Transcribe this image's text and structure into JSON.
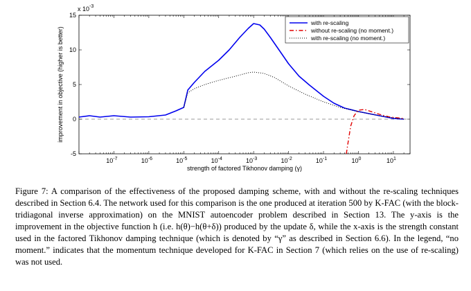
{
  "chart_data": {
    "type": "line",
    "xscale": "log",
    "xlim": [
      1e-08,
      30
    ],
    "ylim": [
      -5,
      15
    ],
    "ylim_note": "",
    "y_multiplier_label": "x 10",
    "y_multiplier_exp": "-3",
    "xlabel": "strength of factored Tikhonov damping (γ)",
    "ylabel": "improvement in objective (higher is better)",
    "x_ticks": [
      {
        "value": 1e-07,
        "base": "10",
        "exp": "-7"
      },
      {
        "value": 1e-06,
        "base": "10",
        "exp": "-6"
      },
      {
        "value": 1e-05,
        "base": "10",
        "exp": "-5"
      },
      {
        "value": 0.0001,
        "base": "10",
        "exp": "-4"
      },
      {
        "value": 0.001,
        "base": "10",
        "exp": "-3"
      },
      {
        "value": 0.01,
        "base": "10",
        "exp": "-2"
      },
      {
        "value": 0.1,
        "base": "10",
        "exp": "-1"
      },
      {
        "value": 1,
        "base": "10",
        "exp": "0"
      },
      {
        "value": 10,
        "base": "10",
        "exp": "1"
      }
    ],
    "y_ticks": [
      {
        "value": -5,
        "label": "-5"
      },
      {
        "value": 0,
        "label": "0"
      },
      {
        "value": 5,
        "label": "5"
      },
      {
        "value": 10,
        "label": "10"
      },
      {
        "value": 15,
        "label": "15"
      }
    ],
    "legend_position": "top-right",
    "series": [
      {
        "name": "with re-scaling",
        "color": "#0000ee",
        "style": "solid",
        "points": [
          [
            1e-08,
            0.3
          ],
          [
            2e-08,
            0.5
          ],
          [
            4e-08,
            0.3
          ],
          [
            1e-07,
            0.5
          ],
          [
            3e-07,
            0.3
          ],
          [
            1e-06,
            0.35
          ],
          [
            3e-06,
            0.6
          ],
          [
            6e-06,
            1.2
          ],
          [
            1e-05,
            1.7
          ],
          [
            1.3e-05,
            4.2
          ],
          [
            2e-05,
            5.3
          ],
          [
            4e-05,
            6.9
          ],
          [
            0.0001,
            8.5
          ],
          [
            0.0002,
            10.0
          ],
          [
            0.0004,
            11.8
          ],
          [
            0.0007,
            13.1
          ],
          [
            0.001,
            13.8
          ],
          [
            0.0015,
            13.6
          ],
          [
            0.002,
            13.0
          ],
          [
            0.003,
            11.8
          ],
          [
            0.005,
            10.2
          ],
          [
            0.01,
            8.0
          ],
          [
            0.02,
            6.2
          ],
          [
            0.04,
            4.9
          ],
          [
            0.1,
            3.3
          ],
          [
            0.2,
            2.3
          ],
          [
            0.4,
            1.6
          ],
          [
            1,
            1.1
          ],
          [
            2,
            0.8
          ],
          [
            5,
            0.4
          ],
          [
            10,
            0.1
          ],
          [
            20,
            0.0
          ]
        ]
      },
      {
        "name": "without re-scaling (no moment.)",
        "color": "#e00000",
        "style": "dashdot",
        "points": [
          [
            0.45,
            -5
          ],
          [
            0.5,
            -3.5
          ],
          [
            0.6,
            -1.0
          ],
          [
            0.75,
            0.5
          ],
          [
            1,
            1.3
          ],
          [
            1.5,
            1.4
          ],
          [
            2,
            1.2
          ],
          [
            4,
            0.7
          ],
          [
            8,
            0.3
          ],
          [
            20,
            0.1
          ]
        ]
      },
      {
        "name": "with re-scaling (no moment.)",
        "color": "#000000",
        "style": "dotted",
        "points": [
          [
            1e-05,
            1.7
          ],
          [
            1.3e-05,
            3.8
          ],
          [
            2e-05,
            4.4
          ],
          [
            4e-05,
            5.0
          ],
          [
            0.0001,
            5.6
          ],
          [
            0.0003,
            6.2
          ],
          [
            0.0007,
            6.7
          ],
          [
            0.001,
            6.8
          ],
          [
            0.002,
            6.6
          ],
          [
            0.004,
            6.0
          ],
          [
            0.01,
            4.8
          ],
          [
            0.03,
            3.6
          ],
          [
            0.1,
            2.5
          ],
          [
            0.3,
            1.7
          ],
          [
            1,
            1.1
          ],
          [
            3,
            0.6
          ],
          [
            10,
            0.2
          ],
          [
            20,
            0.0
          ]
        ]
      }
    ]
  },
  "caption": {
    "text": "Figure 7: A comparison of the effectiveness of the proposed damping scheme, with and without the re-scaling techniques described in Section 6.4. The network used for this comparison is the one produced at iteration 500 by K-FAC (with the block-tridiagonal inverse approximation) on the MNIST autoencoder problem described in Section 13. The y-axis is the improvement in the objective function h (i.e. h(θ)−h(θ+δ)) produced by the update δ, while the x-axis is the strength constant used in the factored Tikhonov damping technique (which is denoted by “γ” as described in Section 6.6). In the legend, “no moment.” indicates that the momentum technique developed for K-FAC in Section 7 (which relies on the use of re-scaling) was not used."
  }
}
